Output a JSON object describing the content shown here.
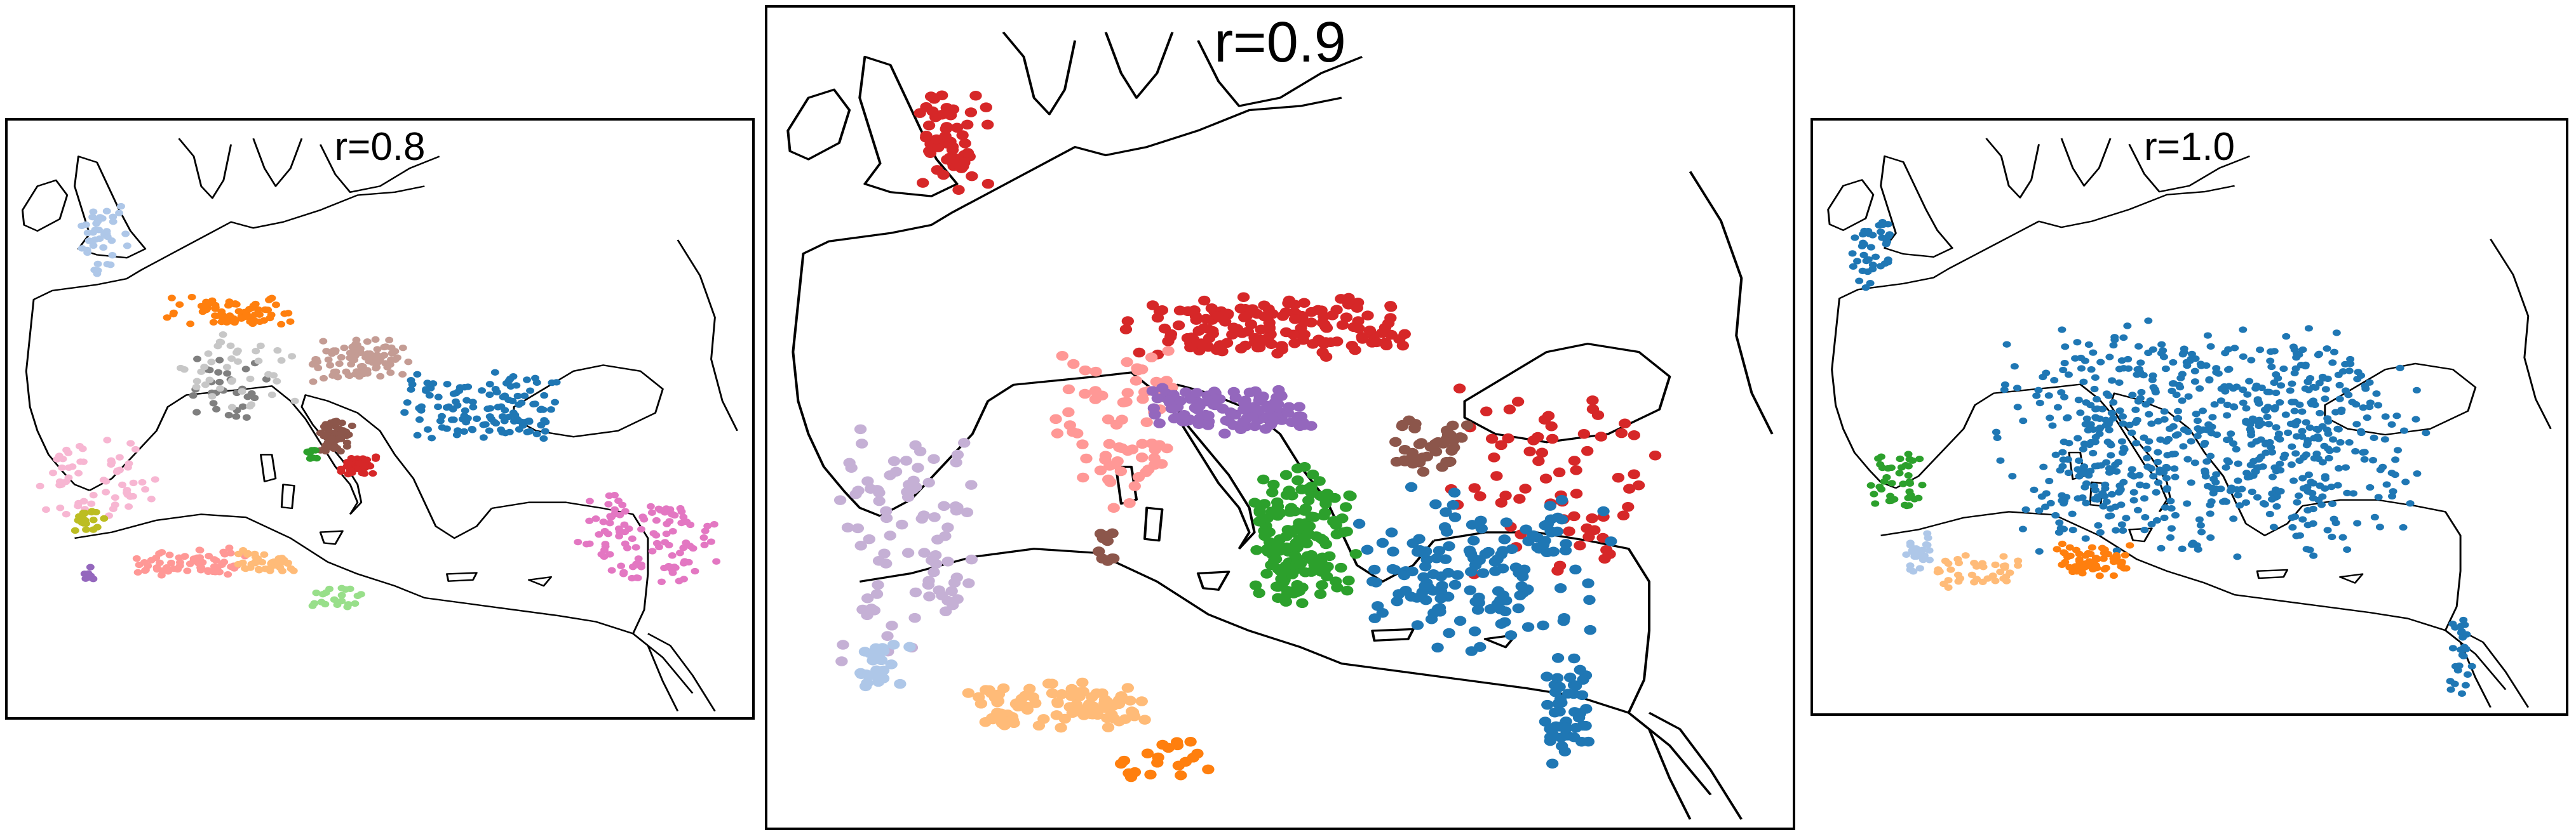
{
  "panels": [
    {
      "id": "p1",
      "title": "r=0.8"
    },
    {
      "id": "p2",
      "title": "r=0.9"
    },
    {
      "id": "p3",
      "title": "r=1.0"
    }
  ],
  "colors": {
    "blue": "#1f77b4",
    "light_blue": "#aec7e8",
    "orange": "#ff7f0e",
    "light_orange": "#ffbb78",
    "green": "#2ca02c",
    "light_green": "#98df8a",
    "red": "#d62728",
    "pink_salmon": "#ff9896",
    "purple": "#9467bd",
    "lavender": "#c5b0d5",
    "brown": "#8c564b",
    "rose_brown": "#c49c94",
    "magenta": "#e377c2",
    "light_pink": "#f7b6d2",
    "gray": "#7f7f7f",
    "light_gray": "#c7c7c7",
    "olive": "#bcbd22",
    "coast": "#000000"
  }
}
